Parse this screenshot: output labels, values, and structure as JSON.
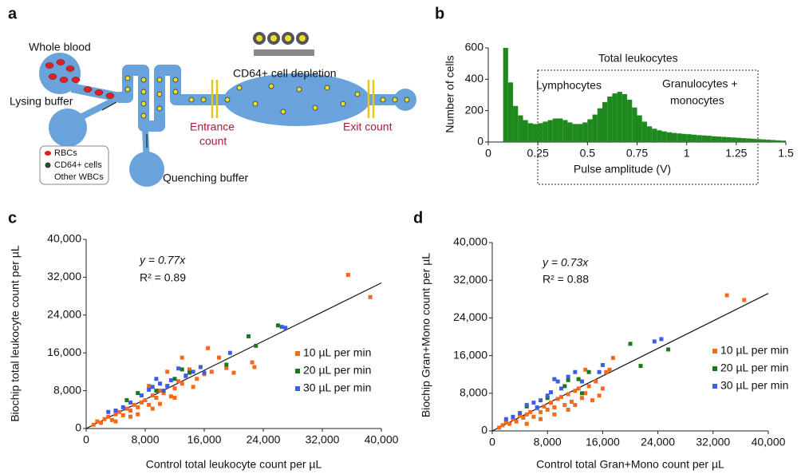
{
  "diagram": {
    "panel_label": "a",
    "whole_blood": "Whole blood",
    "lysing_buffer": "Lysing buffer",
    "legend": [
      "RBCs",
      "CD64+ cells",
      "Other WBCs"
    ],
    "quenching_buffer": "Quenching buffer",
    "depletion": "CD64+ cell depletion",
    "entrance_count": [
      "Entrance",
      "count"
    ],
    "exit_count": "Exit count"
  },
  "chart_data": [
    {
      "type": "histogram",
      "panel_label": "b",
      "y_label": "Number of cells",
      "x_label": "Pulse amplitude (V)",
      "annotations": [
        "Total leukocytes",
        "Lymphocytes",
        "Granulocytes +",
        "monocytes"
      ],
      "color": "#1e8a1e",
      "bins": [
        0,
        0.025,
        0.05,
        0.075,
        0.1,
        0.125,
        0.15,
        0.175,
        0.2,
        0.225,
        0.25,
        0.275,
        0.3,
        0.325,
        0.35,
        0.375,
        0.4,
        0.425,
        0.45,
        0.475,
        0.5,
        0.525,
        0.55,
        0.575,
        0.6,
        0.625,
        0.65,
        0.675,
        0.7,
        0.725,
        0.75,
        0.775,
        0.8,
        0.825,
        0.85,
        0.875,
        0.9,
        0.925,
        0.95,
        0.975,
        1,
        1.025,
        1.05,
        1.075,
        1.1,
        1.125,
        1.15,
        1.175,
        1.2,
        1.225,
        1.25,
        1.275,
        1.3,
        1.325,
        1.35,
        1.375,
        1.4,
        1.425,
        1.45,
        1.475,
        1.5
      ],
      "values": [
        0,
        0,
        0,
        600,
        380,
        230,
        170,
        140,
        120,
        115,
        120,
        130,
        140,
        150,
        150,
        140,
        125,
        115,
        115,
        125,
        145,
        175,
        215,
        255,
        290,
        310,
        320,
        305,
        270,
        220,
        170,
        130,
        100,
        85,
        75,
        68,
        62,
        58,
        55,
        52,
        50,
        47,
        44,
        42,
        40,
        37,
        35,
        33,
        31,
        29,
        27,
        25,
        23,
        21,
        19,
        17,
        15,
        13,
        11,
        9
      ],
      "xlim": [
        0,
        1.5
      ],
      "xticks": [
        0,
        0.25,
        0.5,
        0.75,
        1,
        1.25,
        1.5
      ],
      "ylim": [
        0,
        600
      ],
      "yticks": [
        0,
        200,
        400,
        600
      ]
    },
    {
      "type": "scatter",
      "panel_label": "c",
      "y_label": "Biochip total leukocyte count per µL",
      "x_label": "Control total leukocyte count per µL",
      "equation": "y = 0.77x",
      "r_squared": "R² = 0.89",
      "fit_slope": 0.77,
      "xlim": [
        0,
        40000
      ],
      "xticks": [
        0,
        {
          "value": 8000,
          "label": "8,000"
        },
        {
          "value": 16000,
          "label": "16,000"
        },
        {
          "value": 24000,
          "label": "24,000"
        },
        {
          "value": 32000,
          "label": "32,000"
        },
        {
          "value": 40000,
          "label": "40,000"
        }
      ],
      "ylim": [
        0,
        40000
      ],
      "yticks": [
        0,
        {
          "value": 8000,
          "label": "8,000"
        },
        {
          "value": 16000,
          "label": "16,000"
        },
        {
          "value": 24000,
          "label": "24,000"
        },
        {
          "value": 32000,
          "label": "32,000"
        },
        {
          "value": 40000,
          "label": "40,000"
        }
      ],
      "series": [
        {
          "name": "10 µL per min",
          "color": "#f26b1d",
          "x": [
            1000,
            1500,
            2000,
            2500,
            3000,
            3500,
            4000,
            4500,
            5000,
            5500,
            6000,
            6500,
            7000,
            7500,
            8000,
            8500,
            9000,
            9500,
            10000,
            10500,
            11000,
            11500,
            12000,
            12500,
            13000,
            13500,
            14000,
            14500,
            15000,
            16000,
            17000,
            18000,
            19000,
            20000,
            22500,
            22800,
            35500,
            38500,
            6000,
            7000,
            9000,
            10000,
            12000,
            13000,
            16500,
            4000,
            8500,
            11000
          ],
          "values": [
            800,
            1500,
            1200,
            2000,
            2500,
            1800,
            3000,
            3500,
            2800,
            4200,
            3800,
            5000,
            4500,
            5500,
            6000,
            5000,
            7000,
            6500,
            8000,
            7500,
            9000,
            6800,
            8500,
            10000,
            9500,
            11000,
            12500,
            8800,
            10500,
            11500,
            12000,
            15000,
            12800,
            11800,
            14000,
            13000,
            32500,
            27800,
            2500,
            3000,
            4200,
            5200,
            6500,
            15000,
            17000,
            1500,
            9000,
            12000
          ]
        },
        {
          "name": "20 µL per min",
          "color": "#1a7a1a",
          "x": [
            5500,
            7000,
            9500,
            12000,
            14000,
            19000,
            22000,
            23000,
            26000,
            13000
          ],
          "values": [
            6000,
            7500,
            8000,
            10500,
            11800,
            13500,
            19500,
            17500,
            21800,
            12500
          ]
        },
        {
          "name": "30 µL per min",
          "color": "#3a5ee8",
          "x": [
            3000,
            4000,
            5000,
            6000,
            7500,
            8500,
            9000,
            10000,
            10500,
            11000,
            11500,
            12500,
            13500,
            14500,
            16000,
            19500,
            26500,
            27000,
            9500,
            15500
          ],
          "values": [
            3500,
            3800,
            4500,
            5500,
            7000,
            8200,
            8800,
            9500,
            8000,
            9000,
            10200,
            12700,
            11200,
            12000,
            11800,
            16000,
            21500,
            21300,
            10500,
            13000
          ]
        }
      ]
    },
    {
      "type": "scatter",
      "panel_label": "d",
      "y_label": "Biochip Gran+Mono count per µL",
      "x_label": "Control total Gran+Mono count per µL",
      "equation": "y = 0.73x",
      "r_squared": "R² = 0.88",
      "fit_slope": 0.73,
      "xlim": [
        0,
        40000
      ],
      "xticks": [
        0,
        {
          "value": 8000,
          "label": "8,000"
        },
        {
          "value": 16000,
          "label": "16,000"
        },
        {
          "value": 24000,
          "label": "24,000"
        },
        {
          "value": 32000,
          "label": "32,000"
        },
        {
          "value": 40000,
          "label": "40,000"
        }
      ],
      "ylim": [
        0,
        40000
      ],
      "yticks": [
        0,
        {
          "value": 8000,
          "label": "8,000"
        },
        {
          "value": 16000,
          "label": "16,000"
        },
        {
          "value": 24000,
          "label": "24,000"
        },
        {
          "value": 32000,
          "label": "32,000"
        },
        {
          "value": 40000,
          "label": "40,000"
        }
      ],
      "series": [
        {
          "name": "10 µL per min",
          "color": "#f26b1d",
          "x": [
            1000,
            1500,
            2000,
            2500,
            3000,
            3500,
            4000,
            4500,
            5000,
            5500,
            6000,
            6500,
            7000,
            7500,
            8000,
            8500,
            9000,
            9500,
            10000,
            10500,
            11000,
            11500,
            12000,
            12500,
            13000,
            13500,
            14000,
            14500,
            15000,
            16000,
            17000,
            17500,
            16500,
            13500,
            34000,
            36500,
            5000,
            7000,
            9000,
            11000,
            12000,
            15500
          ],
          "values": [
            700,
            1200,
            1800,
            1500,
            2500,
            2000,
            3200,
            2800,
            3500,
            4000,
            3000,
            4800,
            4000,
            5200,
            4500,
            6000,
            5000,
            6800,
            7200,
            5500,
            7800,
            6200,
            8500,
            9000,
            7000,
            8000,
            9500,
            6500,
            10500,
            9000,
            13000,
            15500,
            12500,
            13000,
            28800,
            27800,
            1500,
            2500,
            3500,
            4500,
            5500,
            7500
          ]
        },
        {
          "name": "20 µL per min",
          "color": "#1a7a1a",
          "x": [
            5000,
            8000,
            10500,
            12500,
            14000,
            20000,
            21500,
            25500,
            13000,
            11000
          ],
          "values": [
            5200,
            7000,
            9500,
            11000,
            12500,
            18500,
            13800,
            17300,
            8000,
            10800
          ]
        },
        {
          "name": "30 µL per min",
          "color": "#3a5ee8",
          "x": [
            2000,
            3000,
            4000,
            5000,
            6000,
            7000,
            8000,
            9000,
            9500,
            10000,
            11000,
            12000,
            13000,
            15500,
            16000,
            23500,
            24500,
            6500,
            8500
          ],
          "values": [
            2500,
            3000,
            3800,
            5500,
            6000,
            6500,
            7500,
            11000,
            10500,
            9000,
            11500,
            12500,
            10500,
            12500,
            14000,
            19000,
            19500,
            5000,
            8200
          ]
        }
      ]
    }
  ]
}
